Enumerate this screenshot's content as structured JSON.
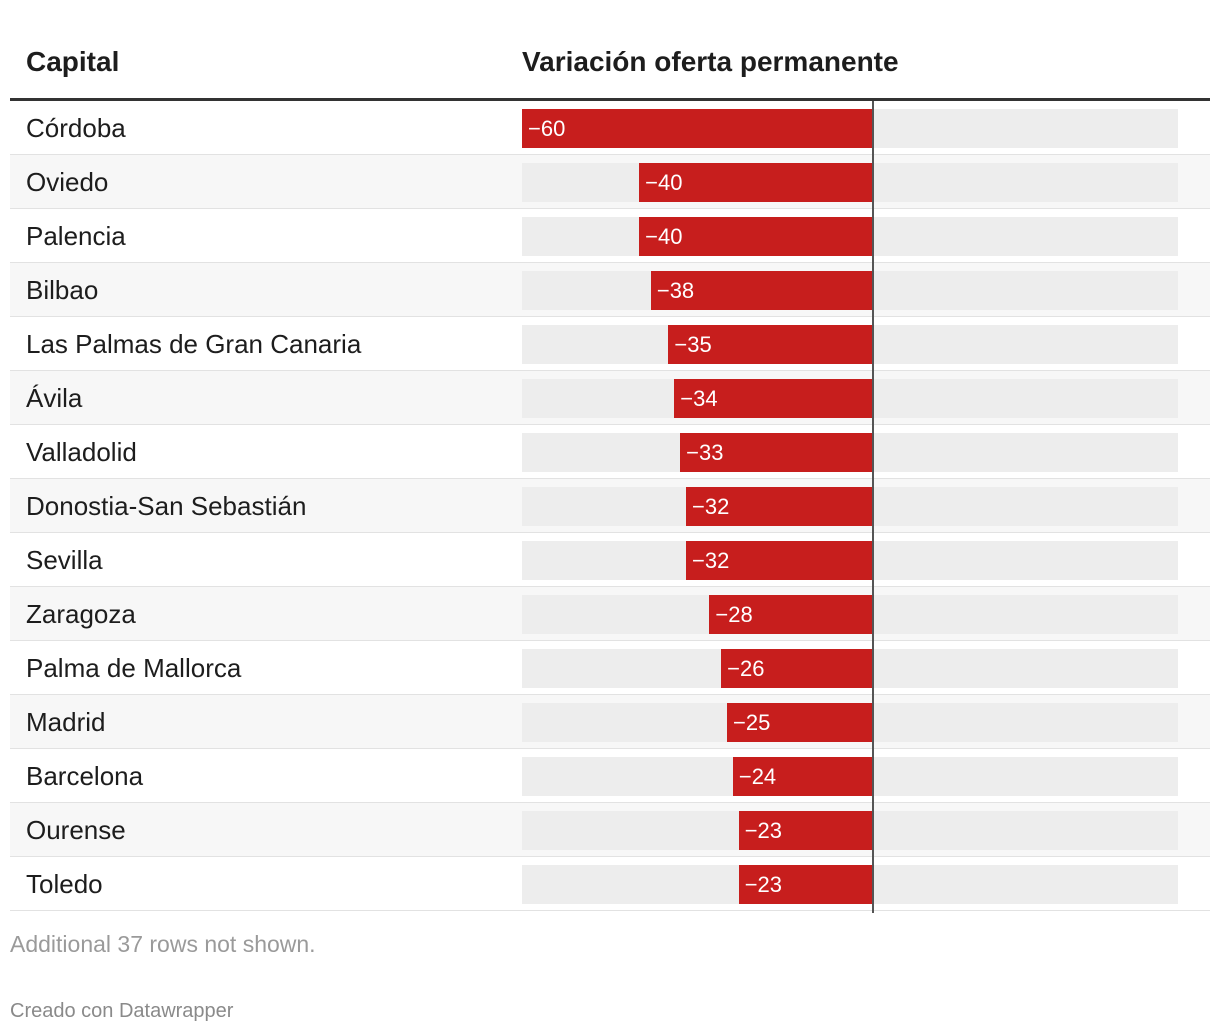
{
  "header": {
    "capital_label": "Capital",
    "variation_label": "Variación oferta permanente"
  },
  "footer": {
    "note": "Additional 37 rows not shown.",
    "credit": "Creado con Datawrapper"
  },
  "colors": {
    "bar": "#c71e1d",
    "track": "#ededed",
    "header_rule": "#333333"
  },
  "chart_data": {
    "type": "bar",
    "orientation": "horizontal",
    "title": "",
    "xlabel": "Variación oferta permanente",
    "ylabel": "Capital",
    "xlim": [
      -60,
      52
    ],
    "categories": [
      "Córdoba",
      "Oviedo",
      "Palencia",
      "Bilbao",
      "Las Palmas de Gran Canaria",
      "Ávila",
      "Valladolid",
      "Donostia-San Sebastián",
      "Sevilla",
      "Zaragoza",
      "Palma de Mallorca",
      "Madrid",
      "Barcelona",
      "Ourense",
      "Toledo"
    ],
    "values": [
      -60,
      -40,
      -40,
      -38,
      -35,
      -34,
      -33,
      -32,
      -32,
      -28,
      -26,
      -25,
      -24,
      -23,
      -23
    ],
    "value_labels": [
      "−60",
      "−40",
      "−40",
      "−38",
      "−35",
      "−34",
      "−33",
      "−32",
      "−32",
      "−28",
      "−26",
      "−25",
      "−24",
      "−23",
      "−23"
    ]
  }
}
